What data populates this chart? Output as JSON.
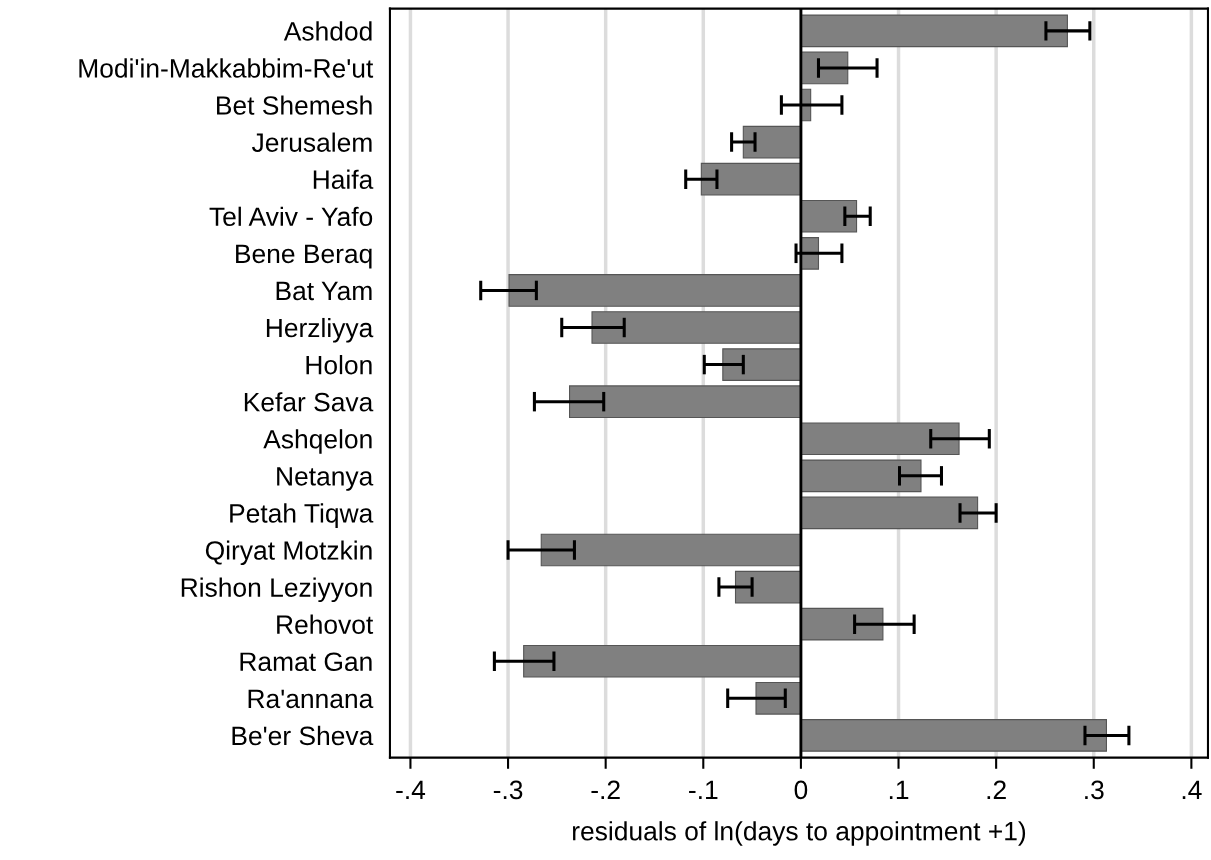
{
  "chart_data": {
    "type": "bar",
    "orientation": "horizontal",
    "xlabel": "residuals of ln(days to appointment +1)",
    "categories": [
      "Ashdod",
      "Modi'in-Makkabbim-Re'ut",
      "Bet Shemesh",
      "Jerusalem",
      "Haifa",
      "Tel Aviv - Yafo",
      "Bene Beraq",
      "Bat Yam",
      "Herzliyya",
      "Holon",
      "Kefar Sava",
      "Ashqelon",
      "Netanya",
      "Petah Tiqwa",
      "Qiryat Motzkin",
      "Rishon Leziyyon",
      "Rehovot",
      "Ramat Gan",
      "Ra'annana",
      "Be'er Sheva"
    ],
    "values": [
      0.273,
      0.048,
      0.01,
      -0.059,
      -0.102,
      0.057,
      0.018,
      -0.299,
      -0.214,
      -0.08,
      -0.237,
      0.162,
      0.123,
      0.181,
      -0.266,
      -0.067,
      0.084,
      -0.284,
      -0.046,
      0.313
    ],
    "errors": [
      [
        0.251,
        0.296
      ],
      [
        0.018,
        0.078
      ],
      [
        -0.02,
        0.042
      ],
      [
        -0.071,
        -0.047
      ],
      [
        -0.118,
        -0.086
      ],
      [
        0.045,
        0.071
      ],
      [
        -0.005,
        0.042
      ],
      [
        -0.328,
        -0.271
      ],
      [
        -0.245,
        -0.181
      ],
      [
        -0.099,
        -0.059
      ],
      [
        -0.273,
        -0.202
      ],
      [
        0.133,
        0.193
      ],
      [
        0.101,
        0.144
      ],
      [
        0.163,
        0.2
      ],
      [
        -0.3,
        -0.232
      ],
      [
        -0.084,
        -0.05
      ],
      [
        0.055,
        0.116
      ],
      [
        -0.314,
        -0.253
      ],
      [
        -0.075,
        -0.016
      ],
      [
        0.291,
        0.336
      ]
    ],
    "color": "#808080",
    "xlim": [
      -0.421,
      0.417
    ],
    "xticks": [
      {
        "value": -0.4,
        "label": "-.4"
      },
      {
        "value": -0.3,
        "label": "-.3"
      },
      {
        "value": -0.2,
        "label": "-.2"
      },
      {
        "value": -0.1,
        "label": "-.1"
      },
      0,
      {
        "value": 0.1,
        "label": ".1"
      },
      {
        "value": 0.2,
        "label": ".2"
      },
      {
        "value": 0.3,
        "label": ".3"
      },
      {
        "value": 0.4,
        "label": ".4"
      }
    ],
    "ref_lines": [
      {
        "axis": "x",
        "value": 0,
        "color": "#000000"
      }
    ],
    "grid": "x"
  }
}
